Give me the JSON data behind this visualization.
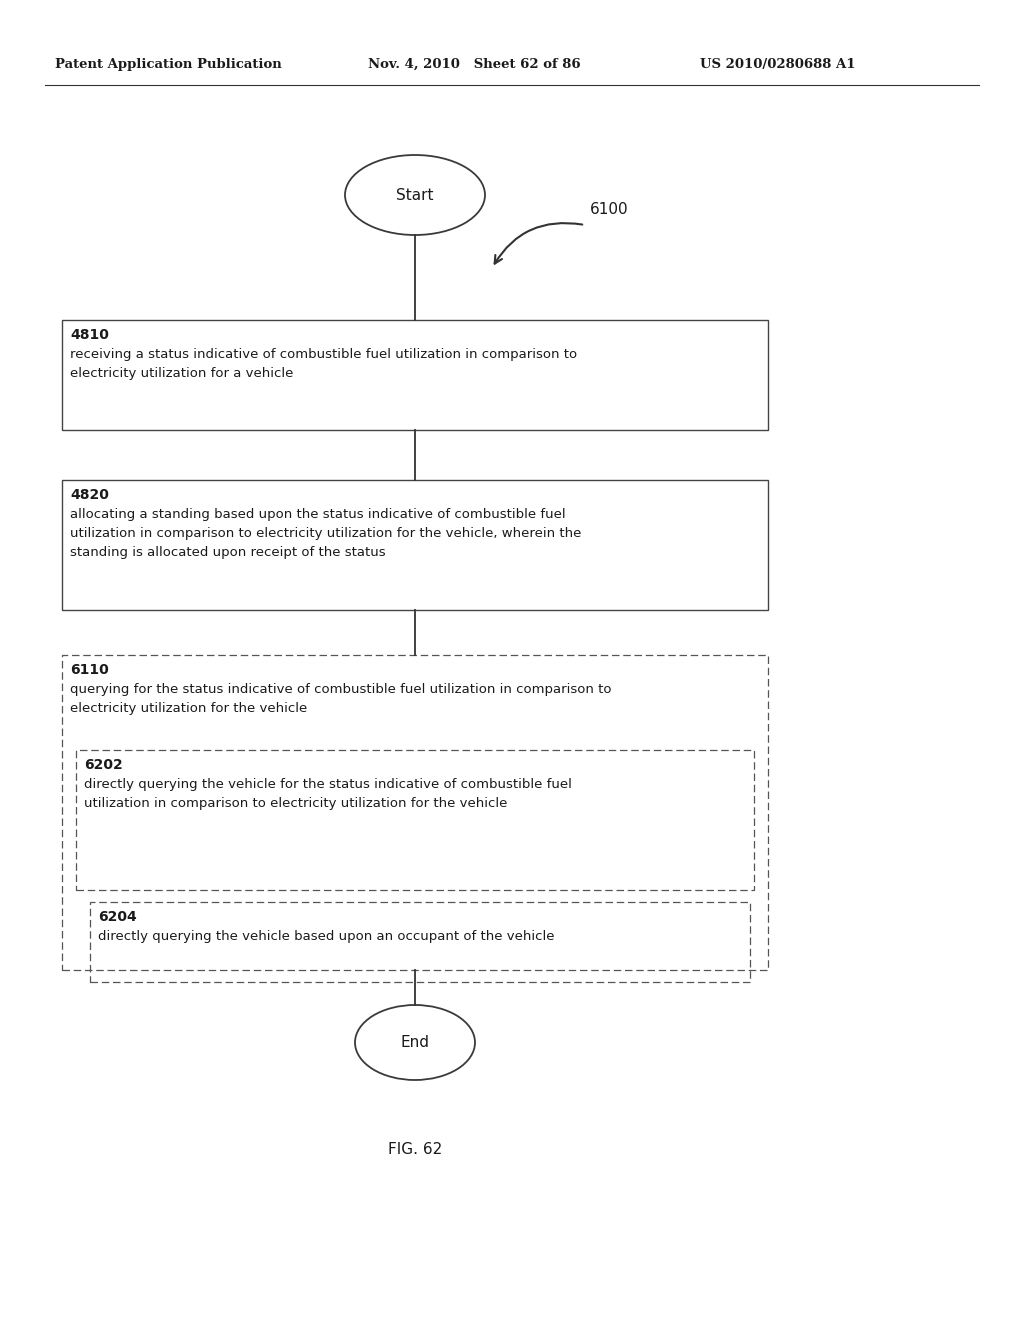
{
  "bg_color": "#ffffff",
  "header_left": "Patent Application Publication",
  "header_mid": "Nov. 4, 2010   Sheet 62 of 86",
  "header_right": "US 2010/0280688 A1",
  "fig_label": "FIG. 62",
  "diagram_label": "6100",
  "start_label": "Start",
  "end_label": "End",
  "box1_id": "4810",
  "box1_text": "receiving a status indicative of combustible fuel utilization in comparison to\nelectricity utilization for a vehicle",
  "box2_id": "4820",
  "box2_text": "allocating a standing based upon the status indicative of combustible fuel\nutilization in comparison to electricity utilization for the vehicle, wherein the\nstanding is allocated upon receipt of the status",
  "box3_id": "6110",
  "box3_text": "querying for the status indicative of combustible fuel utilization in comparison to\nelectricity utilization for the vehicle",
  "box3a_id": "6202",
  "box3a_text": "directly querying the vehicle for the status indicative of combustible fuel\nutilization in comparison to electricity utilization for the vehicle",
  "box3b_id": "6204",
  "box3b_text": "directly querying the vehicle based upon an occupant of the vehicle"
}
